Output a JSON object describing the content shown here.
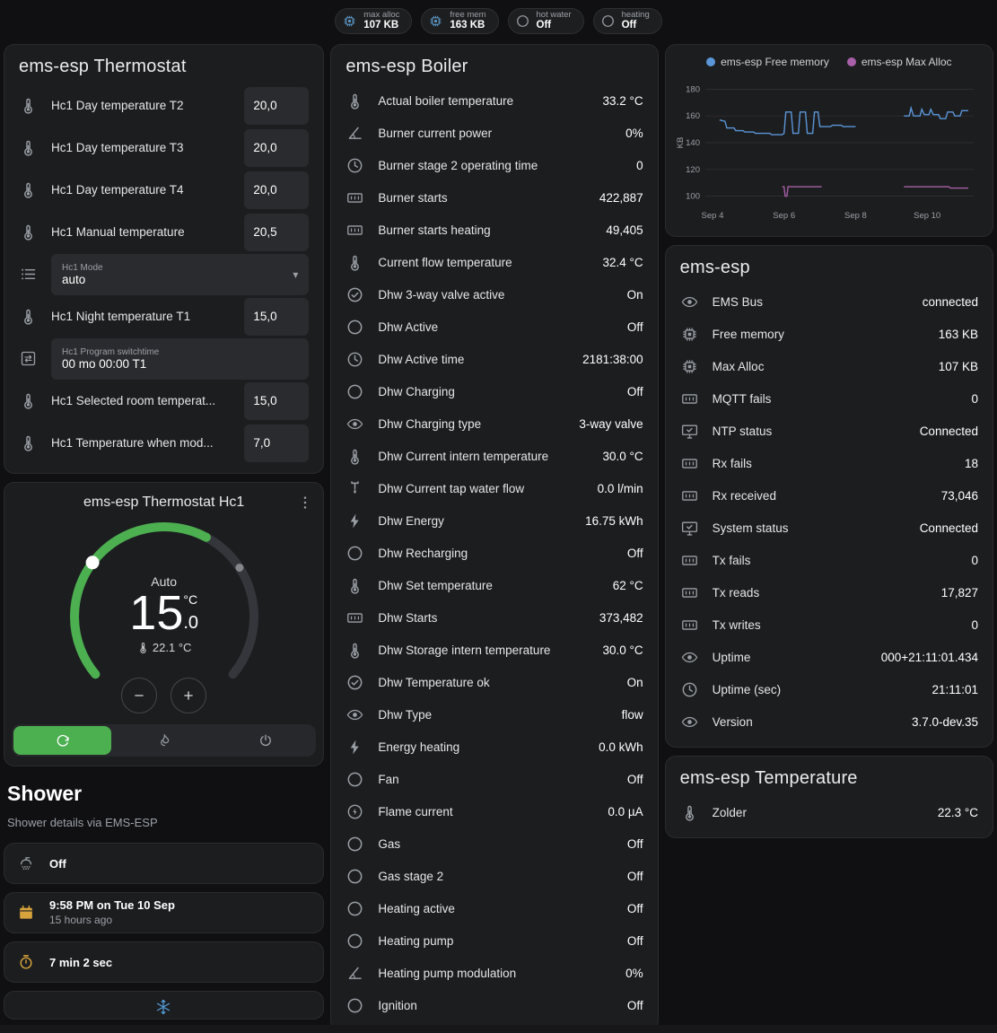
{
  "colors": {
    "accent_green": "#4caf50",
    "amber": "#d7a33c",
    "snowflake_blue": "#54a0dc",
    "chart_blue": "#5b96d8",
    "chart_purple": "#a85fa8"
  },
  "header": {
    "badges": [
      {
        "icon": "memory-chip-icon",
        "icon_class": "badge-icon-blue",
        "label": "max alloc",
        "value": "107 KB"
      },
      {
        "icon": "memory-chip-icon",
        "icon_class": "badge-icon-blue",
        "label": "free mem",
        "value": "163 KB"
      },
      {
        "icon": "circle-outline-icon",
        "icon_class": "badge-icon-gray",
        "label": "hot water",
        "value": "Off"
      },
      {
        "icon": "circle-outline-icon",
        "icon_class": "badge-icon-gray",
        "label": "heating",
        "value": "Off"
      }
    ]
  },
  "left": {
    "thermostat_card": {
      "title": "ems-esp Thermostat",
      "rows": [
        {
          "kind": "row-number",
          "icon": "thermometer-water-icon",
          "label": "Hc1 Day temperature T2",
          "value": "20,0"
        },
        {
          "kind": "row-number",
          "icon": "thermometer-water-icon",
          "label": "Hc1 Day temperature T3",
          "value": "20,0"
        },
        {
          "kind": "row-number",
          "icon": "thermometer-water-icon",
          "label": "Hc1 Day temperature T4",
          "value": "20,0"
        },
        {
          "kind": "row-number",
          "icon": "thermometer-water-icon",
          "label": "Hc1 Manual temperature",
          "value": "20,5"
        },
        {
          "kind": "row-select",
          "icon": "format-list-icon",
          "field_label": "Hc1 Mode",
          "value": "auto"
        },
        {
          "kind": "row-number",
          "icon": "thermometer-water-icon",
          "label": "Hc1 Night temperature T1",
          "value": "15,0"
        },
        {
          "kind": "row-text",
          "icon": "swap-box-icon",
          "field_label": "Hc1 Program switchtime",
          "value": "00 mo 00:00 T1"
        },
        {
          "kind": "row-number",
          "icon": "thermometer-water-icon",
          "label": "Hc1 Selected room temperat...",
          "value": "15,0"
        },
        {
          "kind": "row-number",
          "icon": "thermometer-water-icon",
          "label": "Hc1 Temperature when mod...",
          "value": "7,0"
        }
      ]
    },
    "hc1_card": {
      "title": "ems-esp Thermostat Hc1",
      "mode_label": "Auto",
      "temp_whole": "15",
      "temp_decimal": ".0",
      "temp_unit": "°C",
      "current_temperature": "22.1 °C"
    },
    "shower": {
      "title": "Shower",
      "subtitle": "Shower details via EMS-ESP",
      "state": {
        "icon": "shower-icon",
        "value": "Off"
      },
      "time": {
        "icon": "calendar-icon",
        "value": "9:58 PM on Tue 10 Sep",
        "secondary": "15 hours ago"
      },
      "duration": {
        "icon": "timer-icon",
        "value": "7 min 2 sec"
      },
      "partial_icon": "snowflake-icon"
    }
  },
  "boiler_card": {
    "title": "ems-esp Boiler",
    "rows": [
      {
        "icon": "thermometer-icon",
        "label": "Actual boiler temperature",
        "value": "33.2 °C"
      },
      {
        "icon": "angle-icon",
        "label": "Burner current power",
        "value": "0%"
      },
      {
        "icon": "clock-icon",
        "label": "Burner stage 2 operating time",
        "value": "0"
      },
      {
        "icon": "counter-icon",
        "label": "Burner starts",
        "value": "422,887"
      },
      {
        "icon": "counter-icon",
        "label": "Burner starts heating",
        "value": "49,405"
      },
      {
        "icon": "thermometer-icon",
        "label": "Current flow temperature",
        "value": "32.4 °C"
      },
      {
        "icon": "check-circle-icon",
        "label": "Dhw 3-way valve active",
        "value": "On"
      },
      {
        "icon": "circle-outline-icon",
        "label": "Dhw Active",
        "value": "Off"
      },
      {
        "icon": "clock-icon",
        "label": "Dhw Active time",
        "value": "2181:38:00"
      },
      {
        "icon": "circle-outline-icon",
        "label": "Dhw Charging",
        "value": "Off"
      },
      {
        "icon": "eye-icon",
        "label": "Dhw Charging type",
        "value": "3-way valve"
      },
      {
        "icon": "thermometer-icon",
        "label": "Dhw Current intern temperature",
        "value": "30.0 °C"
      },
      {
        "icon": "pump-icon",
        "label": "Dhw Current tap water flow",
        "value": "0.0 l/min"
      },
      {
        "icon": "lightning-icon",
        "label": "Dhw Energy",
        "value": "16.75 kWh"
      },
      {
        "icon": "circle-outline-icon",
        "label": "Dhw Recharging",
        "value": "Off"
      },
      {
        "icon": "thermometer-icon",
        "label": "Dhw Set temperature",
        "value": "62 °C"
      },
      {
        "icon": "counter-icon",
        "label": "Dhw Starts",
        "value": "373,482"
      },
      {
        "icon": "thermometer-icon",
        "label": "Dhw Storage intern temperature",
        "value": "30.0 °C"
      },
      {
        "icon": "check-circle-icon",
        "label": "Dhw Temperature ok",
        "value": "On"
      },
      {
        "icon": "eye-icon",
        "label": "Dhw Type",
        "value": "flow"
      },
      {
        "icon": "lightning-icon",
        "label": "Energy heating",
        "value": "0.0 kWh"
      },
      {
        "icon": "circle-outline-icon",
        "label": "Fan",
        "value": "Off"
      },
      {
        "icon": "flash-circle-icon",
        "label": "Flame current",
        "value": "0.0 µA"
      },
      {
        "icon": "circle-outline-icon",
        "label": "Gas",
        "value": "Off"
      },
      {
        "icon": "circle-outline-icon",
        "label": "Gas stage 2",
        "value": "Off"
      },
      {
        "icon": "circle-outline-icon",
        "label": "Heating active",
        "value": "Off"
      },
      {
        "icon": "circle-outline-icon",
        "label": "Heating pump",
        "value": "Off"
      },
      {
        "icon": "angle-icon",
        "label": "Heating pump modulation",
        "value": "0%"
      },
      {
        "icon": "circle-outline-icon",
        "label": "Ignition",
        "value": "Off"
      }
    ]
  },
  "right": {
    "ems_card": {
      "title": "ems-esp",
      "rows": [
        {
          "icon": "eye-icon",
          "label": "EMS Bus",
          "value": "connected"
        },
        {
          "icon": "memory-chip-icon",
          "label": "Free memory",
          "value": "163 KB"
        },
        {
          "icon": "memory-chip-icon",
          "label": "Max Alloc",
          "value": "107 KB"
        },
        {
          "icon": "counter-icon",
          "label": "MQTT fails",
          "value": "0"
        },
        {
          "icon": "monitor-check-icon",
          "label": "NTP status",
          "value": "Connected"
        },
        {
          "icon": "counter-icon",
          "label": "Rx fails",
          "value": "18"
        },
        {
          "icon": "counter-icon",
          "label": "Rx received",
          "value": "73,046"
        },
        {
          "icon": "monitor-check-icon",
          "label": "System status",
          "value": "Connected"
        },
        {
          "icon": "counter-icon",
          "label": "Tx fails",
          "value": "0"
        },
        {
          "icon": "counter-icon",
          "label": "Tx reads",
          "value": "17,827"
        },
        {
          "icon": "counter-icon",
          "label": "Tx writes",
          "value": "0"
        },
        {
          "icon": "eye-icon",
          "label": "Uptime",
          "value": "000+21:11:01.434"
        },
        {
          "icon": "clock-icon",
          "label": "Uptime (sec)",
          "value": "21:11:01"
        },
        {
          "icon": "eye-icon",
          "label": "Version",
          "value": "3.7.0-dev.35"
        }
      ]
    },
    "temp_card": {
      "title": "ems-esp Temperature",
      "rows": [
        {
          "icon": "thermometer-icon",
          "label": "Zolder",
          "value": "22.3 °C"
        }
      ]
    }
  },
  "chart_data": {
    "type": "line",
    "ylabel": "KB",
    "ylim": [
      95,
      185
    ],
    "xlim": [
      3.8,
      11.3
    ],
    "yticks": [
      100,
      120,
      140,
      160,
      180
    ],
    "xticks": [
      {
        "x": 4,
        "label": "Sep 4"
      },
      {
        "x": 6,
        "label": "Sep 6"
      },
      {
        "x": 8,
        "label": "Sep 8"
      },
      {
        "x": 10,
        "label": "Sep 10"
      }
    ],
    "series": [
      {
        "name": "ems-esp Free memory",
        "color": "#5b96d8",
        "segments": [
          [
            [
              4.2,
              157
            ],
            [
              4.35,
              156
            ],
            [
              4.4,
              151
            ],
            [
              4.6,
              151
            ],
            [
              4.65,
              149
            ],
            [
              4.85,
              149
            ],
            [
              4.9,
              148
            ],
            [
              5.15,
              148
            ],
            [
              5.2,
              147
            ],
            [
              5.6,
              147
            ],
            [
              5.65,
              146
            ],
            [
              5.95,
              146
            ],
            [
              6.0,
              147
            ],
            [
              6.05,
              163
            ],
            [
              6.2,
              163
            ],
            [
              6.25,
              147
            ],
            [
              6.4,
              147
            ],
            [
              6.45,
              163
            ],
            [
              6.6,
              163
            ],
            [
              6.65,
              147
            ],
            [
              6.8,
              147
            ],
            [
              6.85,
              163
            ],
            [
              6.95,
              163
            ],
            [
              7.0,
              152
            ],
            [
              7.3,
              152
            ],
            [
              7.35,
              153
            ],
            [
              7.6,
              153
            ],
            [
              7.65,
              152
            ],
            [
              8.0,
              152
            ]
          ],
          [
            [
              9.35,
              160
            ],
            [
              9.5,
              160
            ],
            [
              9.55,
              166
            ],
            [
              9.62,
              160
            ],
            [
              9.8,
              160
            ],
            [
              9.85,
              165
            ],
            [
              9.92,
              161
            ],
            [
              10.05,
              161
            ],
            [
              10.1,
              165
            ],
            [
              10.17,
              161
            ],
            [
              10.32,
              161
            ],
            [
              10.37,
              158
            ],
            [
              10.52,
              158
            ],
            [
              10.57,
              163
            ],
            [
              10.72,
              163
            ],
            [
              10.77,
              160
            ],
            [
              10.92,
              160
            ],
            [
              10.97,
              164
            ],
            [
              11.15,
              164
            ]
          ]
        ]
      },
      {
        "name": "ems-esp Max Alloc",
        "color": "#a85fa8",
        "segments": [
          [
            [
              5.95,
              107
            ],
            [
              6.0,
              107
            ],
            [
              6.03,
              100
            ],
            [
              6.08,
              100
            ],
            [
              6.11,
              107
            ],
            [
              7.05,
              107
            ]
          ],
          [
            [
              9.35,
              107
            ],
            [
              10.6,
              107
            ],
            [
              10.65,
              106
            ],
            [
              11.15,
              106
            ]
          ]
        ]
      }
    ]
  }
}
